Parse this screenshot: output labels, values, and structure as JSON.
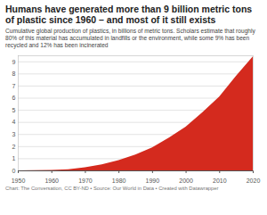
{
  "chart_data": {
    "type": "area",
    "title": "Humans have generated more than 9 billion metric tons of plastic since 1960 – and most of it still exists",
    "subtitle": "Cumulative global production of plastics, in billions of metric tons. Scholars estimate that roughly 80% of this material has accumulated in landfills or the environment, while some 9% has been recycled and 12% has been incinerated",
    "caption": "Chart: The Conversation, CC BY-ND • Source: Our World in Data • Created with Datawrapper",
    "x": [
      1950,
      1955,
      1960,
      1965,
      1970,
      1975,
      1980,
      1985,
      1990,
      1995,
      2000,
      2005,
      2010,
      2015,
      2020
    ],
    "values": [
      0,
      0.01,
      0.04,
      0.1,
      0.25,
      0.5,
      0.85,
      1.3,
      1.9,
      2.7,
      3.6,
      4.8,
      6.1,
      7.8,
      9.4
    ],
    "color": "#d42a1e",
    "xlim": [
      1950,
      2020
    ],
    "xticks": [
      1950,
      1960,
      1970,
      1980,
      1990,
      2000,
      2010,
      2020
    ],
    "ylim": [
      0,
      9.5
    ],
    "yticks": [
      0,
      1,
      2,
      3,
      4,
      5,
      6,
      7,
      8,
      9
    ],
    "grid": true
  }
}
